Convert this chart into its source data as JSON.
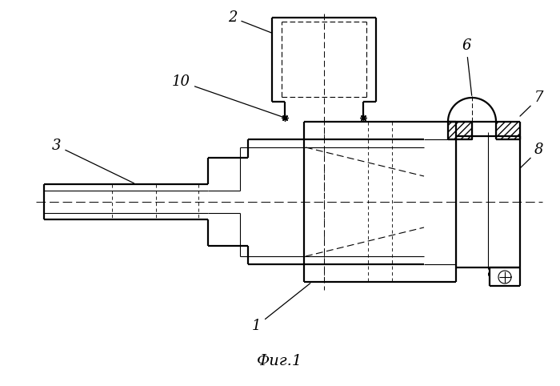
{
  "title": "Фиг.1",
  "bg_color": "#ffffff",
  "lc": "#000000",
  "fig_width": 7.0,
  "fig_height": 4.82,
  "dpi": 100
}
